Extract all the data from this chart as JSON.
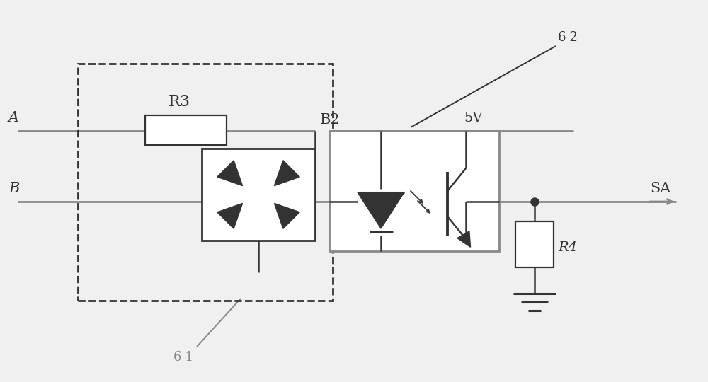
{
  "bg_color": "#f0f0f0",
  "lc": "#888888",
  "dc": "#333333",
  "label_A": "A",
  "label_B": "B",
  "label_R3": "R3",
  "label_B2": "B2",
  "label_5V": "5V",
  "label_SA": "SA",
  "label_R4": "R4",
  "label_61": "6-1",
  "label_62": "6-2",
  "xlim": [
    0,
    10
  ],
  "ylim": [
    0,
    5.4
  ]
}
